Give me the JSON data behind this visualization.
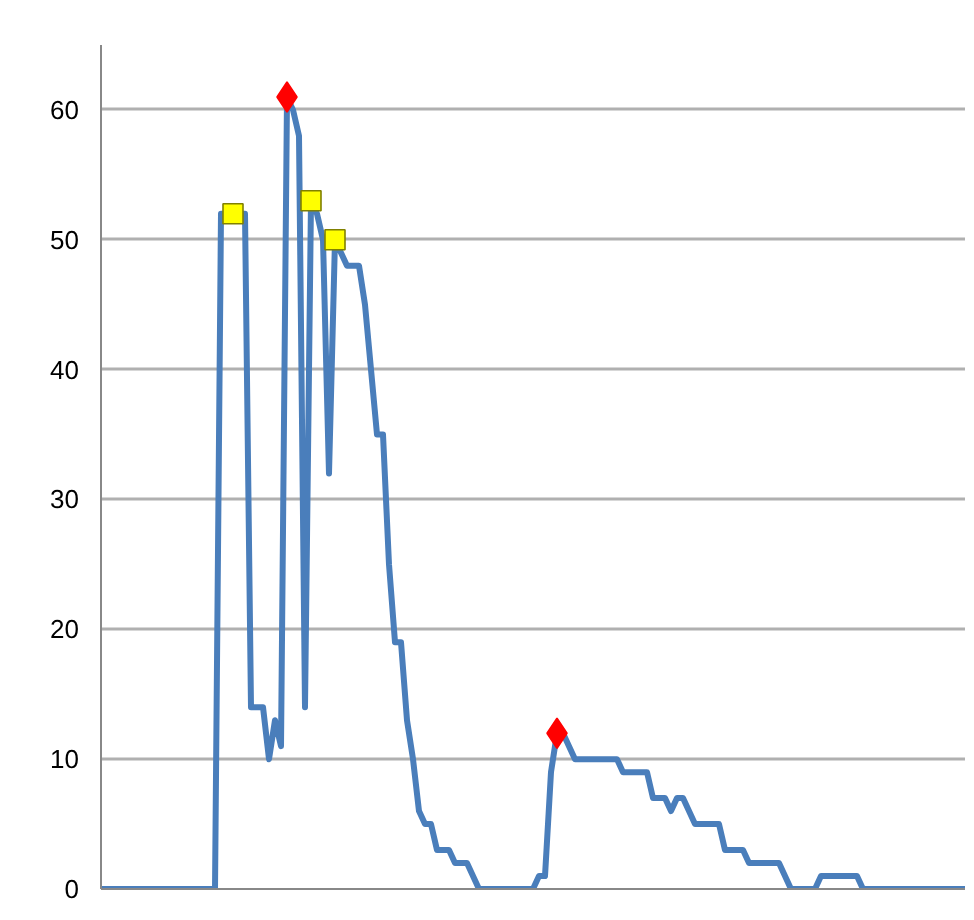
{
  "chart_data": {
    "type": "line",
    "tick_labels": "y",
    "grid": "y",
    "ylim": [
      0,
      65
    ],
    "yticks": [
      0,
      10,
      20,
      30,
      40,
      50,
      60
    ],
    "categories": [
      null,
      null,
      null,
      null,
      null,
      null,
      null,
      null,
      null,
      null,
      null,
      null,
      null,
      null,
      null,
      null,
      null,
      null,
      null,
      null,
      null,
      null,
      null,
      null,
      null,
      null,
      null,
      null,
      null,
      null,
      null,
      null,
      null,
      null,
      null,
      null,
      null,
      null,
      null,
      null,
      null,
      null,
      null,
      null,
      null,
      null,
      null,
      null,
      null,
      null,
      null,
      null,
      null,
      null,
      null,
      null,
      null,
      null,
      null,
      null,
      null,
      null,
      null,
      null,
      null,
      null,
      null,
      null,
      null,
      null,
      null,
      null,
      null,
      null,
      null,
      null,
      null,
      null,
      null,
      null,
      null,
      null,
      null,
      null,
      null,
      null,
      null,
      null,
      null,
      null,
      null,
      null,
      null,
      null,
      null,
      null,
      null,
      null,
      null,
      null,
      null,
      null,
      null,
      null,
      null,
      null,
      null,
      null,
      null,
      null,
      null,
      null,
      null,
      null,
      null,
      null,
      null,
      null,
      null,
      null,
      null,
      null,
      null,
      null,
      null,
      null,
      null,
      null,
      null,
      null,
      null,
      null,
      null,
      null,
      null,
      null,
      null,
      null,
      null,
      null,
      null,
      null,
      null,
      null,
      null
    ],
    "series": [
      {
        "color": "#4a7ebb",
        "values": [
          0,
          0,
          0,
          0,
          0,
          0,
          0,
          0,
          0,
          0,
          0,
          0,
          0,
          0,
          0,
          0,
          0,
          0,
          0,
          0,
          52,
          52,
          52,
          52,
          52,
          14,
          14,
          14,
          10,
          13,
          11,
          61,
          60,
          58,
          14,
          53,
          52,
          50,
          32,
          50,
          49,
          48,
          48,
          48,
          45,
          40,
          35,
          35,
          25,
          19,
          19,
          13,
          10,
          6,
          5,
          5,
          3,
          3,
          3,
          2,
          2,
          2,
          1,
          0,
          0,
          0,
          0,
          0,
          0,
          0,
          0,
          0,
          0,
          1,
          1,
          9,
          12,
          12,
          11,
          10,
          10,
          10,
          10,
          10,
          10,
          10,
          10,
          9,
          9,
          9,
          9,
          9,
          7,
          7,
          7,
          6,
          7,
          7,
          6,
          5,
          5,
          5,
          5,
          5,
          3,
          3,
          3,
          3,
          2,
          2,
          2,
          2,
          2,
          2,
          1,
          0,
          0,
          0,
          0,
          0,
          1,
          1,
          1,
          1,
          1,
          1,
          1,
          0,
          0,
          0,
          0,
          0,
          0,
          0,
          0,
          0,
          0,
          0,
          0,
          0,
          0,
          0,
          0,
          0,
          0
        ]
      },
      {
        "type": "scatter",
        "marker": "square",
        "color": "#ffff00",
        "values": [
          null,
          null,
          null,
          null,
          null,
          null,
          null,
          null,
          null,
          null,
          null,
          null,
          null,
          null,
          null,
          null,
          null,
          null,
          null,
          null,
          null,
          null,
          52,
          null,
          null,
          null,
          null,
          null,
          null,
          null,
          null,
          null,
          null,
          null,
          null,
          53,
          null,
          null,
          null,
          50,
          null,
          null,
          null,
          null,
          null,
          null,
          null,
          null,
          null,
          null,
          null,
          null,
          null,
          null,
          null,
          null,
          null,
          null,
          null,
          null,
          null,
          null,
          null,
          null,
          null,
          null,
          null,
          null,
          null,
          null,
          null,
          null,
          null,
          null,
          null,
          null,
          null,
          null,
          null,
          null,
          null,
          null,
          null,
          null,
          null,
          null,
          null,
          null,
          null,
          null,
          null,
          null,
          null,
          null,
          null,
          null,
          null,
          null,
          null,
          null,
          null,
          null,
          null,
          null,
          null,
          null,
          null,
          null,
          null,
          null,
          null,
          null,
          null,
          null,
          null,
          null,
          null,
          null,
          null,
          null,
          null,
          null,
          null,
          null,
          null,
          null,
          null,
          null,
          null,
          null,
          null,
          null,
          null,
          null,
          null,
          null,
          null,
          null,
          null,
          null,
          null,
          null,
          null,
          null,
          null
        ]
      },
      {
        "type": "scatter",
        "marker": "diamond",
        "color": "#ff0000",
        "values": [
          null,
          null,
          null,
          null,
          null,
          null,
          null,
          null,
          null,
          null,
          null,
          null,
          null,
          null,
          null,
          null,
          null,
          null,
          null,
          null,
          null,
          null,
          null,
          null,
          null,
          null,
          null,
          null,
          null,
          null,
          null,
          61,
          null,
          null,
          null,
          null,
          null,
          null,
          null,
          null,
          null,
          null,
          null,
          null,
          null,
          null,
          null,
          null,
          null,
          null,
          null,
          null,
          null,
          null,
          null,
          null,
          null,
          null,
          null,
          null,
          null,
          null,
          null,
          null,
          null,
          null,
          null,
          null,
          null,
          null,
          null,
          null,
          null,
          null,
          null,
          null,
          12,
          null,
          null,
          null,
          null,
          null,
          null,
          null,
          null,
          null,
          null,
          null,
          null,
          null,
          null,
          null,
          null,
          null,
          null,
          null,
          null,
          null,
          null,
          null,
          null,
          null,
          null,
          null,
          null,
          null,
          null,
          null,
          null,
          null,
          null,
          null,
          null,
          null,
          null,
          null,
          null,
          null,
          null,
          null,
          null,
          null,
          null,
          null,
          null,
          null,
          null,
          null,
          null,
          null,
          null,
          null,
          null,
          null,
          null,
          null,
          null,
          null,
          null,
          null,
          null,
          null,
          null,
          null,
          null
        ]
      }
    ]
  }
}
